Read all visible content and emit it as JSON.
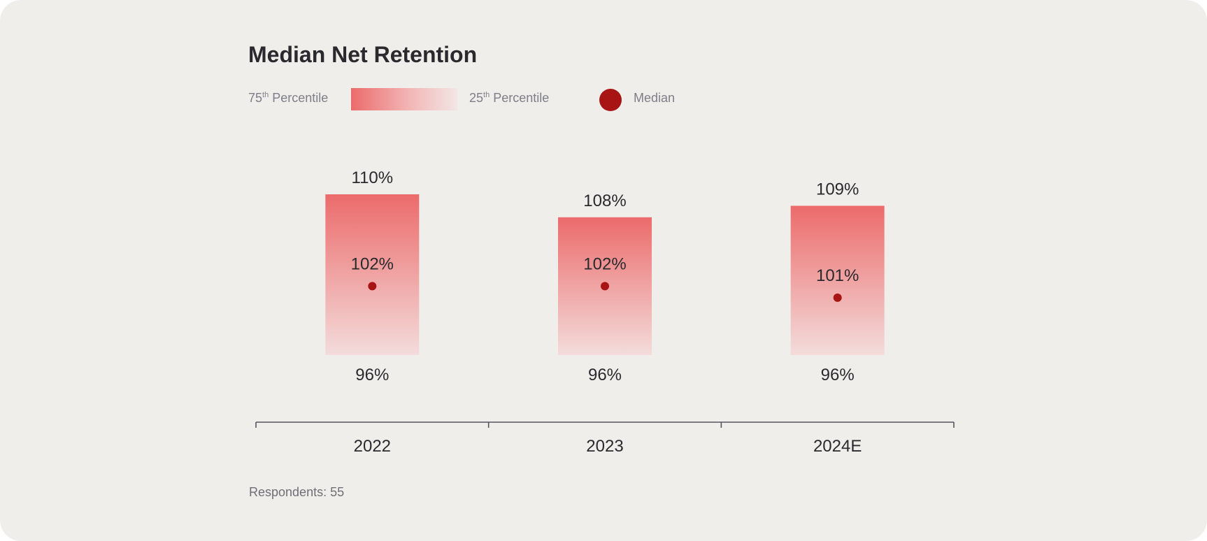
{
  "card": {
    "footer": "Respondents: 55"
  },
  "legend": {
    "p75_prefix": "75",
    "p75_suffix": "th",
    "p75_rest": " Percentile",
    "p25_prefix": "25",
    "p25_suffix": "th",
    "p25_rest": " Percentile",
    "median_label": "Median"
  },
  "colors": {
    "bar_top": "#ec6b6b",
    "bar_bottom": "#f3dcdb",
    "median_dot": "#a81414",
    "axis": "#555560",
    "label_text": "#2a2a2e"
  },
  "chart_data": {
    "type": "range-bar",
    "title": "Median Net Retention",
    "categories": [
      "2022",
      "2023",
      "2024E"
    ],
    "series": [
      {
        "name": "75th Percentile",
        "values": [
          110,
          108,
          109
        ]
      },
      {
        "name": "Median",
        "values": [
          102,
          102,
          101
        ]
      },
      {
        "name": "25th Percentile",
        "values": [
          96,
          96,
          96
        ]
      }
    ],
    "labels": {
      "p75": [
        "110%",
        "108%",
        "109%"
      ],
      "median": [
        "102%",
        "102%",
        "101%"
      ],
      "p25": [
        "96%",
        "96%",
        "96%"
      ]
    },
    "unit": "%",
    "xlabel": "",
    "ylabel": ""
  }
}
